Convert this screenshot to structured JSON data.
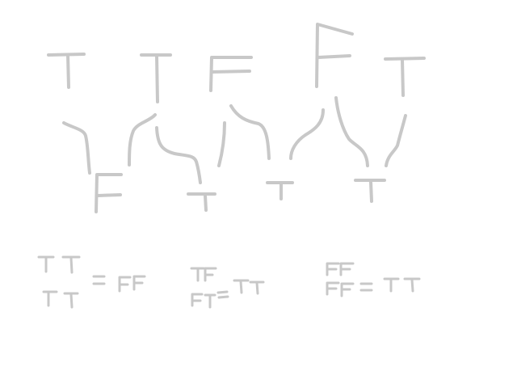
{
  "drawing": {
    "stroke_color": "#c8c8c8",
    "background_color": "#ffffff",
    "top_row_letters": [
      "T",
      "T",
      "F",
      "F",
      "T"
    ],
    "second_row_letters": [
      "F",
      "T",
      "T",
      "T"
    ],
    "equations": [
      {
        "left": [
          "TT",
          "TT"
        ],
        "right": "FF"
      },
      {
        "left": [
          "TF",
          "FT"
        ],
        "right": "TT"
      },
      {
        "left": [
          "FF",
          "FF"
        ],
        "right": "TT"
      }
    ]
  }
}
